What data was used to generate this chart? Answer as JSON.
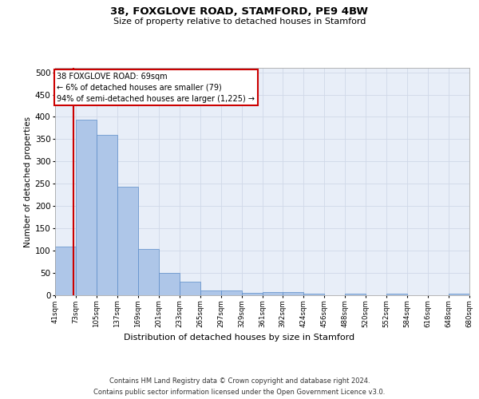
{
  "title": "38, FOXGLOVE ROAD, STAMFORD, PE9 4BW",
  "subtitle": "Size of property relative to detached houses in Stamford",
  "xlabel": "Distribution of detached houses by size in Stamford",
  "ylabel": "Number of detached properties",
  "bin_edges": [
    41,
    73,
    105,
    137,
    169,
    201,
    233,
    265,
    297,
    329,
    361,
    392,
    424,
    456,
    488,
    520,
    552,
    584,
    616,
    648,
    680
  ],
  "bar_heights": [
    110,
    393,
    360,
    243,
    104,
    50,
    30,
    10,
    10,
    6,
    7,
    7,
    4,
    0,
    4,
    0,
    4,
    0,
    0,
    4
  ],
  "bar_color": "#aec6e8",
  "bar_edge_color": "#5b8cc8",
  "grid_color": "#d0d8e8",
  "bg_color": "#e8eef8",
  "property_line_x": 69,
  "property_line_color": "#cc0000",
  "annotation_line1": "38 FOXGLOVE ROAD: 69sqm",
  "annotation_line2": "← 6% of detached houses are smaller (79)",
  "annotation_line3": "94% of semi-detached houses are larger (1,225) →",
  "annotation_box_edgecolor": "#cc0000",
  "ylim": [
    0,
    510
  ],
  "yticks": [
    0,
    50,
    100,
    150,
    200,
    250,
    300,
    350,
    400,
    450,
    500
  ],
  "tick_labels": [
    "41sqm",
    "73sqm",
    "105sqm",
    "137sqm",
    "169sqm",
    "201sqm",
    "233sqm",
    "265sqm",
    "297sqm",
    "329sqm",
    "361sqm",
    "392sqm",
    "424sqm",
    "456sqm",
    "488sqm",
    "520sqm",
    "552sqm",
    "584sqm",
    "616sqm",
    "648sqm",
    "680sqm"
  ],
  "footer_line1": "Contains HM Land Registry data © Crown copyright and database right 2024.",
  "footer_line2": "Contains public sector information licensed under the Open Government Licence v3.0."
}
